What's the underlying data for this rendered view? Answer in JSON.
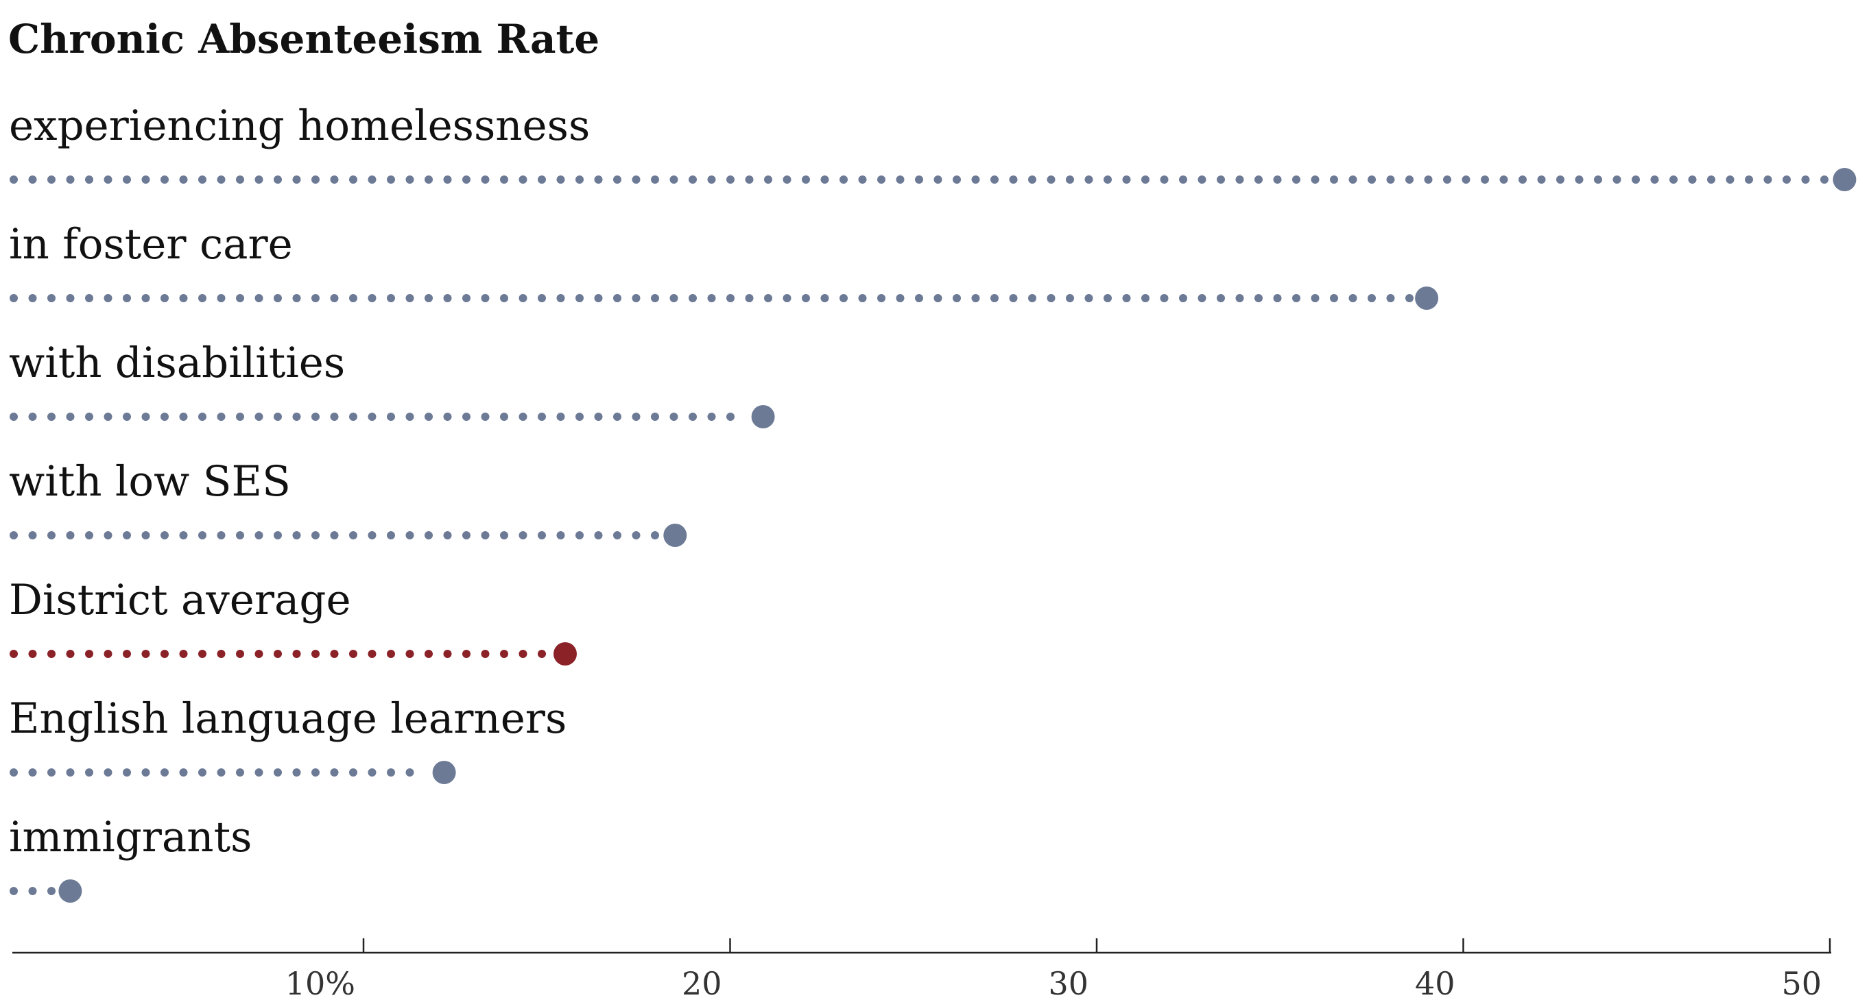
{
  "chart_data": {
    "type": "dot-lollipop",
    "title": "Chronic Absenteeism Rate",
    "xlabel": "",
    "ylabel": "",
    "xlim": [
      0,
      50
    ],
    "x_ticks": [
      10,
      20,
      30,
      40,
      50
    ],
    "x_tick_labels": [
      "10%",
      "20",
      "30",
      "40",
      "50"
    ],
    "grid": false,
    "legend": "none",
    "categories": [
      "experiencing homelessness",
      "in foster care",
      "with disabilities",
      "with low SES",
      "District average",
      "English language learners",
      "immigrants"
    ],
    "values": [
      50.4,
      39.0,
      20.9,
      18.5,
      15.5,
      12.2,
      2.0
    ],
    "highlight_index": 4,
    "colors": {
      "default": "#6c7a96",
      "highlight": "#8b2228",
      "axis": "#222222",
      "text": "#111111"
    }
  }
}
